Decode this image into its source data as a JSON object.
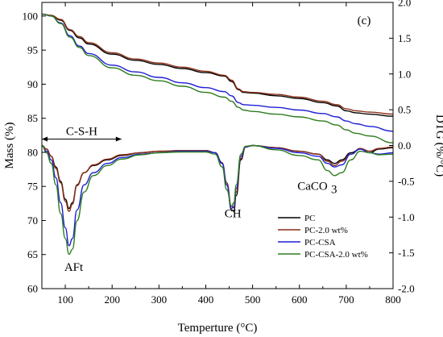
{
  "chart_data": {
    "type": "line",
    "panel_label": "(c)",
    "xlabel": "Temperture (°C)",
    "ylabel_left": "Mass (%)",
    "ylabel_right": "DTG (%/°C)",
    "xlim": [
      50,
      800
    ],
    "ylim_left": [
      60,
      102
    ],
    "ylim_right": [
      -2.0,
      2.0
    ],
    "x_ticks": [
      100,
      200,
      300,
      400,
      500,
      600,
      700,
      800
    ],
    "y_ticks_left": [
      60,
      65,
      70,
      75,
      80,
      85,
      90,
      95,
      100
    ],
    "y_ticks_right": [
      -2.0,
      -1.5,
      -1.0,
      -0.5,
      0.0,
      0.5,
      1.0,
      1.5,
      2.0
    ],
    "annotations": {
      "csh": "C-S-H",
      "aft": "AFt",
      "ch": "CH",
      "caco3": "CaCO",
      "caco3_sub": "3"
    },
    "csh_range": [
      50,
      220
    ],
    "legend_position": "lower-right",
    "colors": {
      "PC": "#000000",
      "PC-2.0 wt%": "#8b2e16",
      "PC-CSA": "#1f1fd6",
      "PC-CSA-2.0 wt%": "#2e7d1f"
    },
    "series": [
      {
        "name": "PC",
        "axis": "left",
        "x": [
          50,
          70,
          90,
          110,
          130,
          150,
          200,
          250,
          300,
          350,
          400,
          440,
          455,
          470,
          480,
          500,
          550,
          600,
          650,
          680,
          700,
          720,
          750,
          800
        ],
        "values": [
          100.3,
          100.1,
          99.4,
          97.9,
          96.8,
          95.9,
          94.4,
          93.5,
          92.9,
          92.3,
          91.7,
          91.2,
          90.4,
          89.2,
          88.8,
          88.7,
          88.3,
          87.9,
          87.3,
          86.8,
          86.1,
          85.8,
          85.6,
          85.3
        ]
      },
      {
        "name": "PC-2.0 wt%",
        "axis": "left",
        "x": [
          50,
          70,
          90,
          110,
          130,
          150,
          200,
          250,
          300,
          350,
          400,
          440,
          455,
          470,
          480,
          500,
          550,
          600,
          650,
          680,
          700,
          720,
          750,
          800
        ],
        "values": [
          100.3,
          100.1,
          99.5,
          98.0,
          97.0,
          96.1,
          94.6,
          93.7,
          93.1,
          92.5,
          91.9,
          91.3,
          90.6,
          89.3,
          88.9,
          88.8,
          88.5,
          88.1,
          87.5,
          87.0,
          86.4,
          86.1,
          85.9,
          85.6
        ]
      },
      {
        "name": "PC-CSA",
        "axis": "left",
        "x": [
          50,
          70,
          90,
          110,
          130,
          150,
          200,
          250,
          300,
          350,
          400,
          440,
          455,
          470,
          480,
          500,
          550,
          600,
          650,
          680,
          700,
          720,
          750,
          800
        ],
        "values": [
          100.3,
          100.0,
          99.0,
          97.1,
          95.6,
          94.5,
          92.8,
          91.8,
          91.0,
          90.2,
          89.5,
          88.9,
          88.3,
          87.3,
          87.0,
          86.9,
          86.6,
          86.2,
          85.7,
          85.2,
          84.6,
          84.2,
          83.8,
          83.1
        ]
      },
      {
        "name": "PC-CSA-2.0 wt%",
        "axis": "left",
        "x": [
          50,
          70,
          90,
          110,
          130,
          150,
          200,
          250,
          300,
          350,
          400,
          440,
          455,
          470,
          480,
          500,
          550,
          600,
          650,
          680,
          700,
          720,
          750,
          800
        ],
        "values": [
          100.3,
          100.0,
          98.9,
          96.9,
          95.4,
          94.2,
          92.4,
          91.3,
          90.5,
          89.7,
          88.8,
          88.1,
          87.5,
          86.6,
          86.2,
          86.0,
          85.6,
          85.2,
          84.6,
          84.0,
          83.3,
          82.8,
          82.4,
          81.4
        ]
      },
      {
        "name": "PC",
        "axis": "right",
        "x": [
          50,
          60,
          70,
          80,
          90,
          100,
          108,
          115,
          125,
          140,
          160,
          190,
          220,
          260,
          300,
          350,
          400,
          420,
          435,
          445,
          455,
          460,
          465,
          475,
          485,
          500,
          550,
          600,
          640,
          660,
          675,
          690,
          710,
          730,
          750,
          770,
          800
        ],
        "values": [
          0.0,
          -0.05,
          -0.15,
          -0.3,
          -0.5,
          -0.75,
          -0.88,
          -0.8,
          -0.55,
          -0.38,
          -0.28,
          -0.2,
          -0.14,
          -0.1,
          -0.08,
          -0.07,
          -0.07,
          -0.1,
          -0.25,
          -0.55,
          -0.9,
          -0.92,
          -0.7,
          -0.2,
          -0.02,
          0.0,
          -0.03,
          -0.08,
          -0.12,
          -0.2,
          -0.25,
          -0.2,
          -0.1,
          -0.05,
          -0.1,
          -0.05,
          -0.03
        ]
      },
      {
        "name": "PC-2.0 wt%",
        "axis": "right",
        "x": [
          50,
          60,
          70,
          80,
          90,
          100,
          108,
          115,
          125,
          140,
          160,
          190,
          220,
          260,
          300,
          350,
          400,
          420,
          435,
          445,
          455,
          460,
          465,
          475,
          485,
          500,
          550,
          600,
          640,
          660,
          675,
          690,
          710,
          730,
          750,
          770,
          800
        ],
        "values": [
          0.0,
          -0.05,
          -0.15,
          -0.32,
          -0.52,
          -0.78,
          -0.92,
          -0.82,
          -0.56,
          -0.38,
          -0.27,
          -0.19,
          -0.13,
          -0.1,
          -0.08,
          -0.07,
          -0.07,
          -0.1,
          -0.24,
          -0.52,
          -0.85,
          -0.87,
          -0.65,
          -0.18,
          -0.02,
          0.0,
          -0.03,
          -0.08,
          -0.12,
          -0.22,
          -0.28,
          -0.22,
          -0.12,
          -0.04,
          -0.08,
          -0.04,
          -0.02
        ]
      },
      {
        "name": "PC-CSA",
        "axis": "right",
        "x": [
          50,
          60,
          70,
          80,
          90,
          100,
          108,
          115,
          125,
          140,
          160,
          190,
          220,
          260,
          300,
          350,
          400,
          420,
          435,
          445,
          455,
          460,
          465,
          475,
          485,
          500,
          550,
          600,
          640,
          660,
          675,
          690,
          710,
          730,
          750,
          770,
          800
        ],
        "values": [
          0.0,
          -0.08,
          -0.2,
          -0.45,
          -0.8,
          -1.15,
          -1.4,
          -1.3,
          -0.9,
          -0.55,
          -0.38,
          -0.25,
          -0.17,
          -0.12,
          -0.1,
          -0.08,
          -0.08,
          -0.1,
          -0.25,
          -0.55,
          -0.88,
          -0.85,
          -0.6,
          -0.15,
          -0.02,
          0.0,
          -0.04,
          -0.1,
          -0.15,
          -0.25,
          -0.3,
          -0.27,
          -0.12,
          -0.05,
          -0.1,
          -0.12,
          -0.1
        ]
      },
      {
        "name": "PC-CSA-2.0 wt%",
        "axis": "right",
        "x": [
          50,
          60,
          70,
          80,
          90,
          100,
          108,
          115,
          125,
          140,
          160,
          190,
          220,
          260,
          300,
          350,
          400,
          420,
          435,
          445,
          455,
          460,
          465,
          475,
          485,
          500,
          550,
          600,
          640,
          660,
          675,
          690,
          710,
          730,
          750,
          770,
          800
        ],
        "values": [
          0.0,
          -0.1,
          -0.25,
          -0.55,
          -0.95,
          -1.3,
          -1.52,
          -1.45,
          -1.05,
          -0.65,
          -0.42,
          -0.28,
          -0.19,
          -0.13,
          -0.1,
          -0.09,
          -0.09,
          -0.12,
          -0.3,
          -0.62,
          -0.85,
          -0.8,
          -0.55,
          -0.12,
          -0.01,
          0.0,
          -0.06,
          -0.14,
          -0.2,
          -0.35,
          -0.42,
          -0.38,
          -0.2,
          -0.08,
          -0.1,
          -0.13,
          -0.12
        ]
      }
    ]
  }
}
